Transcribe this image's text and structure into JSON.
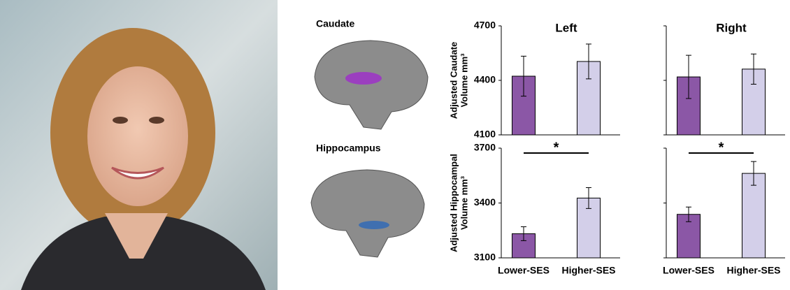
{
  "figure_labels": [
    "Caudate",
    "Hippocampus"
  ],
  "chart_data": [
    {
      "type": "bar",
      "title": "Left",
      "ylabel": [
        "Adjusted Caudate",
        "Volume mm³"
      ],
      "categories": [
        null,
        null
      ],
      "values": [
        4423,
        4504
      ],
      "errors": [
        110,
        96
      ],
      "colors": [
        "#8b57a6",
        "#d3cfe9"
      ],
      "ylim": [
        4100,
        4700
      ],
      "yticks": [
        4100,
        4400,
        4700
      ],
      "tick_labels": true
    },
    {
      "type": "bar",
      "title": "Right",
      "categories": [
        null,
        null
      ],
      "values": [
        4419,
        4462
      ],
      "errors": [
        119,
        83
      ],
      "colors": [
        "#8b57a6",
        "#d3cfe9"
      ],
      "ylim": [
        4100,
        4700
      ],
      "yticks": [
        4100,
        4400,
        4700
      ],
      "tick_labels": false
    },
    {
      "type": "bar",
      "ylabel": [
        "Adjusted Hippocampal",
        "Volume mm³"
      ],
      "categories": [
        "Lower-SES",
        "Higher-SES"
      ],
      "values": [
        3232,
        3427
      ],
      "errors": [
        38,
        57
      ],
      "colors": [
        "#8b57a6",
        "#d3cfe9"
      ],
      "ylim": [
        3100,
        3700
      ],
      "yticks": [
        3100,
        3400,
        3700
      ],
      "tick_labels": true,
      "significance": "*"
    },
    {
      "type": "bar",
      "categories": [
        "Lower-SES",
        "Higher-SES"
      ],
      "values": [
        3338,
        3562
      ],
      "errors": [
        40,
        65
      ],
      "colors": [
        "#8b57a6",
        "#d3cfe9"
      ],
      "ylim": [
        3100,
        3700
      ],
      "yticks": [
        3100,
        3400,
        3700
      ],
      "tick_labels": false,
      "significance": "*"
    }
  ]
}
